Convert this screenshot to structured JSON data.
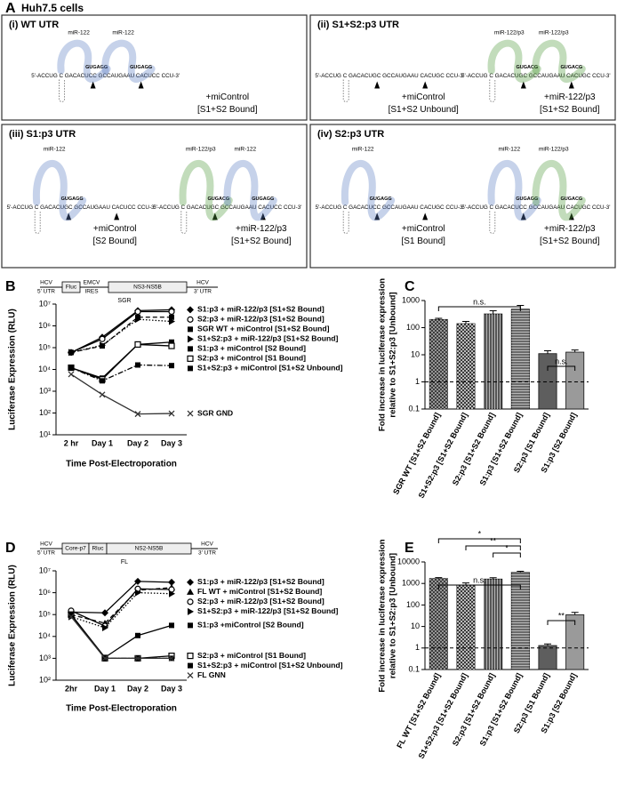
{
  "panel_a": {
    "label": "A",
    "subtitle": "Huh7.5 cells",
    "boxes": [
      {
        "title": "(i) WT UTR",
        "sides": [
          {
            "mirnas": [
              {
                "name": "miR-122",
                "seed": "GUGAGG",
                "color": "#5b7fc4"
              },
              {
                "name": "miR-122",
                "seed": "GUGAGG",
                "color": "#5b7fc4"
              }
            ],
            "sequence": "5'-ACCUG C GACACUCC GCCAUGAAU CACUCC CCU-3'",
            "treatment": "+miControl",
            "state": "[S1+S2 Bound]"
          }
        ]
      },
      {
        "title": "(ii) S1+S2:p3 UTR",
        "sides": [
          {
            "mirnas": [],
            "sequence": "5'-ACCUG C GACACUGC GCCAUGAAU CACUGC CCU-3'",
            "treatment": "+miControl",
            "state": "[S1+S2 Unbound]"
          },
          {
            "mirnas": [
              {
                "name": "miR-122/p3",
                "seed": "GUGACG",
                "color": "#4f9a3c"
              },
              {
                "name": "miR-122/p3",
                "seed": "GUGACG",
                "color": "#4f9a3c"
              }
            ],
            "sequence": "5'-ACCUG C GACACUGC GCCAUGAAU CACUGC CCU-3'",
            "treatment": "+miR-122/p3",
            "state": "[S1+S2 Bound]"
          }
        ]
      },
      {
        "title": "(iii) S1:p3 UTR",
        "sides": [
          {
            "mirnas": [
              {
                "name": "miR-122",
                "seed": "GUGAGG",
                "color": "#5b7fc4"
              }
            ],
            "sequence": "5'-ACCUG C GACACUGC GCCAUGAAU CACUCC CCU-3'",
            "treatment": "+miControl",
            "state": "[S2 Bound]"
          },
          {
            "mirnas": [
              {
                "name": "miR-122/p3",
                "seed": "GUGACG",
                "color": "#4f9a3c"
              },
              {
                "name": "miR-122",
                "seed": "GUGAGG",
                "color": "#5b7fc4"
              }
            ],
            "sequence": "5'-ACCUG C GACACUGC GCCAUGAAU CACUCC CCU-3'",
            "treatment": "+miR-122/p3",
            "state": "[S1+S2 Bound]"
          }
        ]
      },
      {
        "title": "(iv) S2:p3 UTR",
        "sides": [
          {
            "mirnas": [
              {
                "name": "miR-122",
                "seed": "GUGAGG",
                "color": "#5b7fc4"
              }
            ],
            "sequence": "5'-ACCUG C GACACUCC GCCAUGAAU CACUGC CCU-3'",
            "treatment": "+miControl",
            "state": "[S1 Bound]"
          },
          {
            "mirnas": [
              {
                "name": "miR-122",
                "seed": "GUGAGG",
                "color": "#5b7fc4"
              },
              {
                "name": "miR-122/p3",
                "seed": "GUGACG",
                "color": "#4f9a3c"
              }
            ],
            "sequence": "5'-ACCUG C GACACUCC GCCAUGAAU CACUGC CCU-3'",
            "treatment": "+miR-122/p3",
            "state": "[S1+S2 Bound]"
          }
        ]
      }
    ]
  },
  "chart_data": [
    {
      "type": "line",
      "panel": "B",
      "log_y": true,
      "construct": {
        "name": "SGR",
        "parts": [
          {
            "lines": [
              "HCV",
              "5' UTR"
            ]
          },
          {
            "lines": [
              "Fluc"
            ]
          },
          {
            "lines": [
              "EMCV",
              "IRES"
            ]
          },
          {
            "lines": [
              "NS3-NS5B"
            ]
          },
          {
            "lines": [
              "HCV",
              "3' UTR"
            ]
          }
        ]
      },
      "x_label": "Time Post-Electroporation",
      "y_label": "Luciferase Expression (RLU)",
      "categories": [
        "2 hr",
        "Day 1",
        "Day 2",
        "Day 3"
      ],
      "ylim": [
        10,
        10000000
      ],
      "yticks": [
        {
          "value": 10,
          "label": "10¹"
        },
        {
          "value": 100,
          "label": "10²"
        },
        {
          "value": 1000,
          "label": "10³"
        },
        {
          "value": 10000,
          "label": "10⁴"
        },
        {
          "value": 100000,
          "label": "10⁵"
        },
        {
          "value": 1000000,
          "label": "10⁶"
        },
        {
          "value": 10000000,
          "label": "10⁷"
        }
      ],
      "series": [
        {
          "name": "S1:p3 + miR-122/p3 [S1+S2 Bound]",
          "color": "#000000",
          "marker": "diamond",
          "dash": "solid",
          "values": [
            60000,
            300000,
            5000000,
            5500000
          ]
        },
        {
          "name": "S2:p3 + miR-122/p3 [S1+S2 Bound]",
          "color": "#000000",
          "marker": "circle-open",
          "dash": "solid",
          "values": [
            60000,
            250000,
            4500000,
            4500000
          ]
        },
        {
          "name": "SGR WT + miControl [S1+S2 Bound]",
          "color": "#000000",
          "marker": "square",
          "dash": "dashed",
          "values": [
            60000,
            120000,
            2500000,
            2500000
          ]
        },
        {
          "name": "S1+S2:p3 + miR-122/p3 [S1+S2 Bound]",
          "color": "#000000",
          "marker": "triangle-right",
          "dash": "dotted",
          "values": [
            60000,
            130000,
            2000000,
            1600000
          ]
        },
        {
          "name": "S1:p3 + miControl [S2 Bound]",
          "color": "#000000",
          "marker": "square",
          "dash": "solid",
          "values": [
            12000,
            4000,
            140000,
            180000
          ]
        },
        {
          "name": "S2:p3 + miControl [S1 Bound]",
          "color": "#000000",
          "marker": "square-open",
          "dash": "solid",
          "values": [
            12000,
            3500,
            140000,
            120000
          ]
        },
        {
          "name": "S1+S2:p3 + miControl [S1+S2 Unbound]",
          "color": "#000000",
          "marker": "square",
          "dash": "dashdot",
          "values": [
            12000,
            3000,
            16000,
            15000
          ]
        },
        {
          "name": "SGR GND",
          "color": "#333333",
          "marker": "x",
          "dash": "solid",
          "values": [
            6000,
            700,
            90,
            95
          ]
        }
      ]
    },
    {
      "type": "bar",
      "panel": "C",
      "log_y": true,
      "y_label": [
        "Fold increase in luciferase expression",
        "relative to S1+S2:p3 [Unbound]"
      ],
      "categories": [
        "SGR WT [S1+S2 Bound]",
        "S1+S2:p3 [S1+S2 Bound]",
        "S2:p3 [S1+S2 Bound]",
        "S1:p3 [S1+S2 Bound]",
        "S2:p3 [S1 Bound]",
        "S1:p3 [S2 Bound]"
      ],
      "values": [
        200,
        140,
        320,
        480,
        11,
        12.5
      ],
      "errors": [
        20,
        30,
        100,
        180,
        3,
        2.5
      ],
      "colors": [
        "#2b2b2b",
        "#3a3a3a",
        "#555555",
        "#6a6a6a",
        "#5e5e5e",
        "#9a9a9a"
      ],
      "patterns": [
        "crosshatch",
        "checker",
        "vertical-lines",
        "horizontal-lines",
        "none",
        "none"
      ],
      "reference_line": 1,
      "ylim": [
        0.1,
        1000
      ],
      "yticks": [
        0.1,
        1,
        10,
        100,
        1000
      ],
      "annotations": [
        "n.s.",
        "n.s."
      ]
    },
    {
      "type": "line",
      "panel": "D",
      "log_y": true,
      "construct": {
        "name": "FL",
        "parts": [
          {
            "lines": [
              "HCV",
              "5' UTR"
            ]
          },
          {
            "lines": [
              "Core-p7"
            ]
          },
          {
            "lines": [
              "Rluc"
            ]
          },
          {
            "lines": [
              "NS2-NS5B"
            ]
          },
          {
            "lines": [
              "HCV",
              "3' UTR"
            ]
          }
        ]
      },
      "x_label": "Time Post-Electroporation",
      "y_label": "Luciferase Expression (RLU)",
      "categories": [
        "2hr",
        "Day 1",
        "Day 2",
        "Day 3"
      ],
      "ylim": [
        100,
        10000000
      ],
      "yticks": [
        {
          "value": 100,
          "label": "10²"
        },
        {
          "value": 1000,
          "label": "10³"
        },
        {
          "value": 10000,
          "label": "10⁴"
        },
        {
          "value": 100000,
          "label": "10⁵"
        },
        {
          "value": 1000000,
          "label": "10⁶"
        },
        {
          "value": 10000000,
          "label": "10⁷"
        }
      ],
      "series": [
        {
          "name": "S1:p3 + miR-122/p3 [S1+S2 Bound]",
          "color": "#000000",
          "marker": "diamond",
          "dash": "solid",
          "values": [
            130000,
            120000,
            3300000,
            3000000
          ]
        },
        {
          "name": "FL WT + miControl [S1+S2 Bound]",
          "color": "#000000",
          "marker": "triangle",
          "dash": "dashed",
          "values": [
            100000,
            40000,
            1300000,
            1700000
          ]
        },
        {
          "name": "S2:p3 + miR-122/p3 [S1+S2 Bound]",
          "color": "#000000",
          "marker": "circle-open",
          "dash": "solid",
          "values": [
            150000,
            30000,
            1500000,
            1400000
          ]
        },
        {
          "name": "S1+S2:p3 + miR-122/p3 [S1+S2 Bound]",
          "color": "#000000",
          "marker": "triangle-right",
          "dash": "dotted",
          "values": [
            80000,
            25000,
            1000000,
            900000
          ]
        },
        {
          "name": "S1:p3 +miControl [S2 Bound]",
          "color": "#000000",
          "marker": "square",
          "dash": "solid",
          "values": [
            100000,
            1100,
            11000,
            32000
          ]
        },
        {
          "name": "S2:p3 + miControl [S1 Bound]",
          "color": "#000000",
          "marker": "square-open",
          "dash": "solid",
          "values": [
            100000,
            1000,
            1000,
            1300
          ]
        },
        {
          "name": "S1+S2:p3 + miControl [S1+S2 Unbound]",
          "color": "#000000",
          "marker": "square",
          "dash": "dashdot",
          "values": [
            100000,
            1000,
            1000,
            1000
          ]
        },
        {
          "name": "FL GNN",
          "color": "#333333",
          "marker": "x",
          "dash": "solid",
          "values": [
            80000,
            1000,
            1000,
            1000
          ]
        }
      ]
    },
    {
      "type": "bar",
      "panel": "E",
      "log_y": true,
      "y_label": [
        "Fold increase in luciferase expression",
        "relative to S1+S2:p3 [Unbound]"
      ],
      "categories": [
        "FL WT [S1+S2 Bound]",
        "S1+S2:p3 [S1+S2 Bound]",
        "S2:p3 [S1+S2 Bound]",
        "S1:p3 [S1+S2 Bound]",
        "S2:p3 [S1 Bound]",
        "S1:p3 [S2 Bound]"
      ],
      "values": [
        1700,
        850,
        1600,
        3300,
        1.3,
        35
      ],
      "errors": [
        180,
        200,
        250,
        400,
        0.25,
        10
      ],
      "colors": [
        "#2b2b2b",
        "#3a3a3a",
        "#555555",
        "#6a6a6a",
        "#5e5e5e",
        "#9a9a9a"
      ],
      "patterns": [
        "crosshatch",
        "checker",
        "vertical-lines",
        "horizontal-lines",
        "none",
        "none"
      ],
      "reference_line": 1,
      "ylim": [
        0.1,
        10000
      ],
      "yticks": [
        0.1,
        1,
        10,
        100,
        1000,
        10000
      ],
      "annotations": [
        "*",
        "**",
        "*",
        "n.s.",
        "**"
      ]
    }
  ]
}
